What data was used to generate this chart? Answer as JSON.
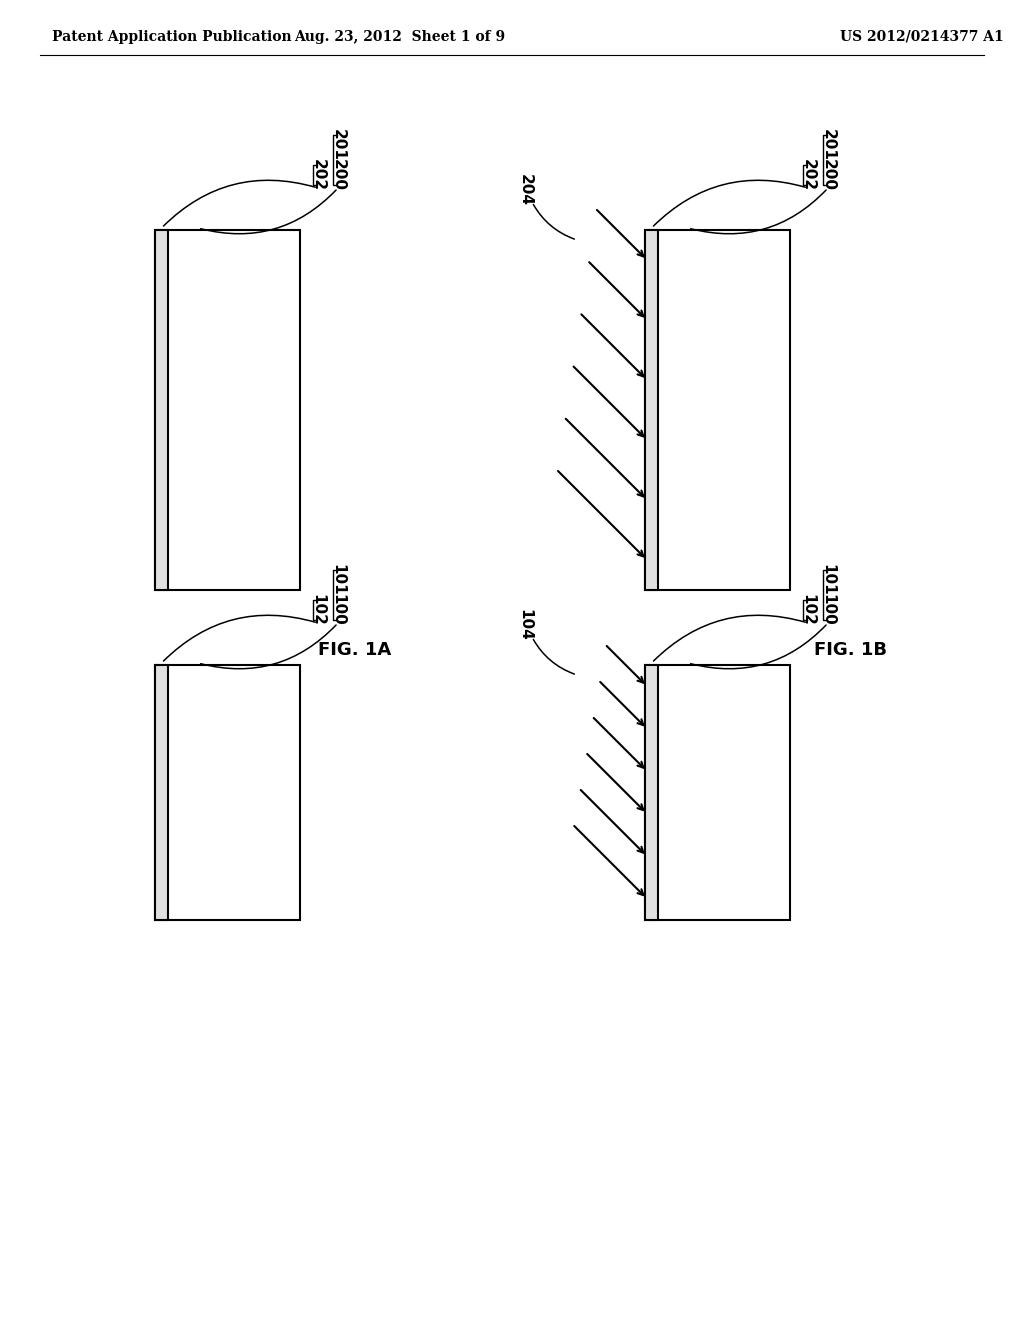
{
  "bg_color": "#ffffff",
  "header_left": "Patent Application Publication",
  "header_mid": "Aug. 23, 2012  Sheet 1 of 9",
  "header_right": "US 2012/0214377 A1",
  "fig1a_label": "FIG. 1A",
  "fig1b_label": "FIG. 1B",
  "panel_lw": 1.5,
  "thin_lw": 1.5,
  "arrow_lw": 1.5,
  "label_fontsize": 11,
  "header_fontsize": 10,
  "figlabel_fontsize": 13
}
